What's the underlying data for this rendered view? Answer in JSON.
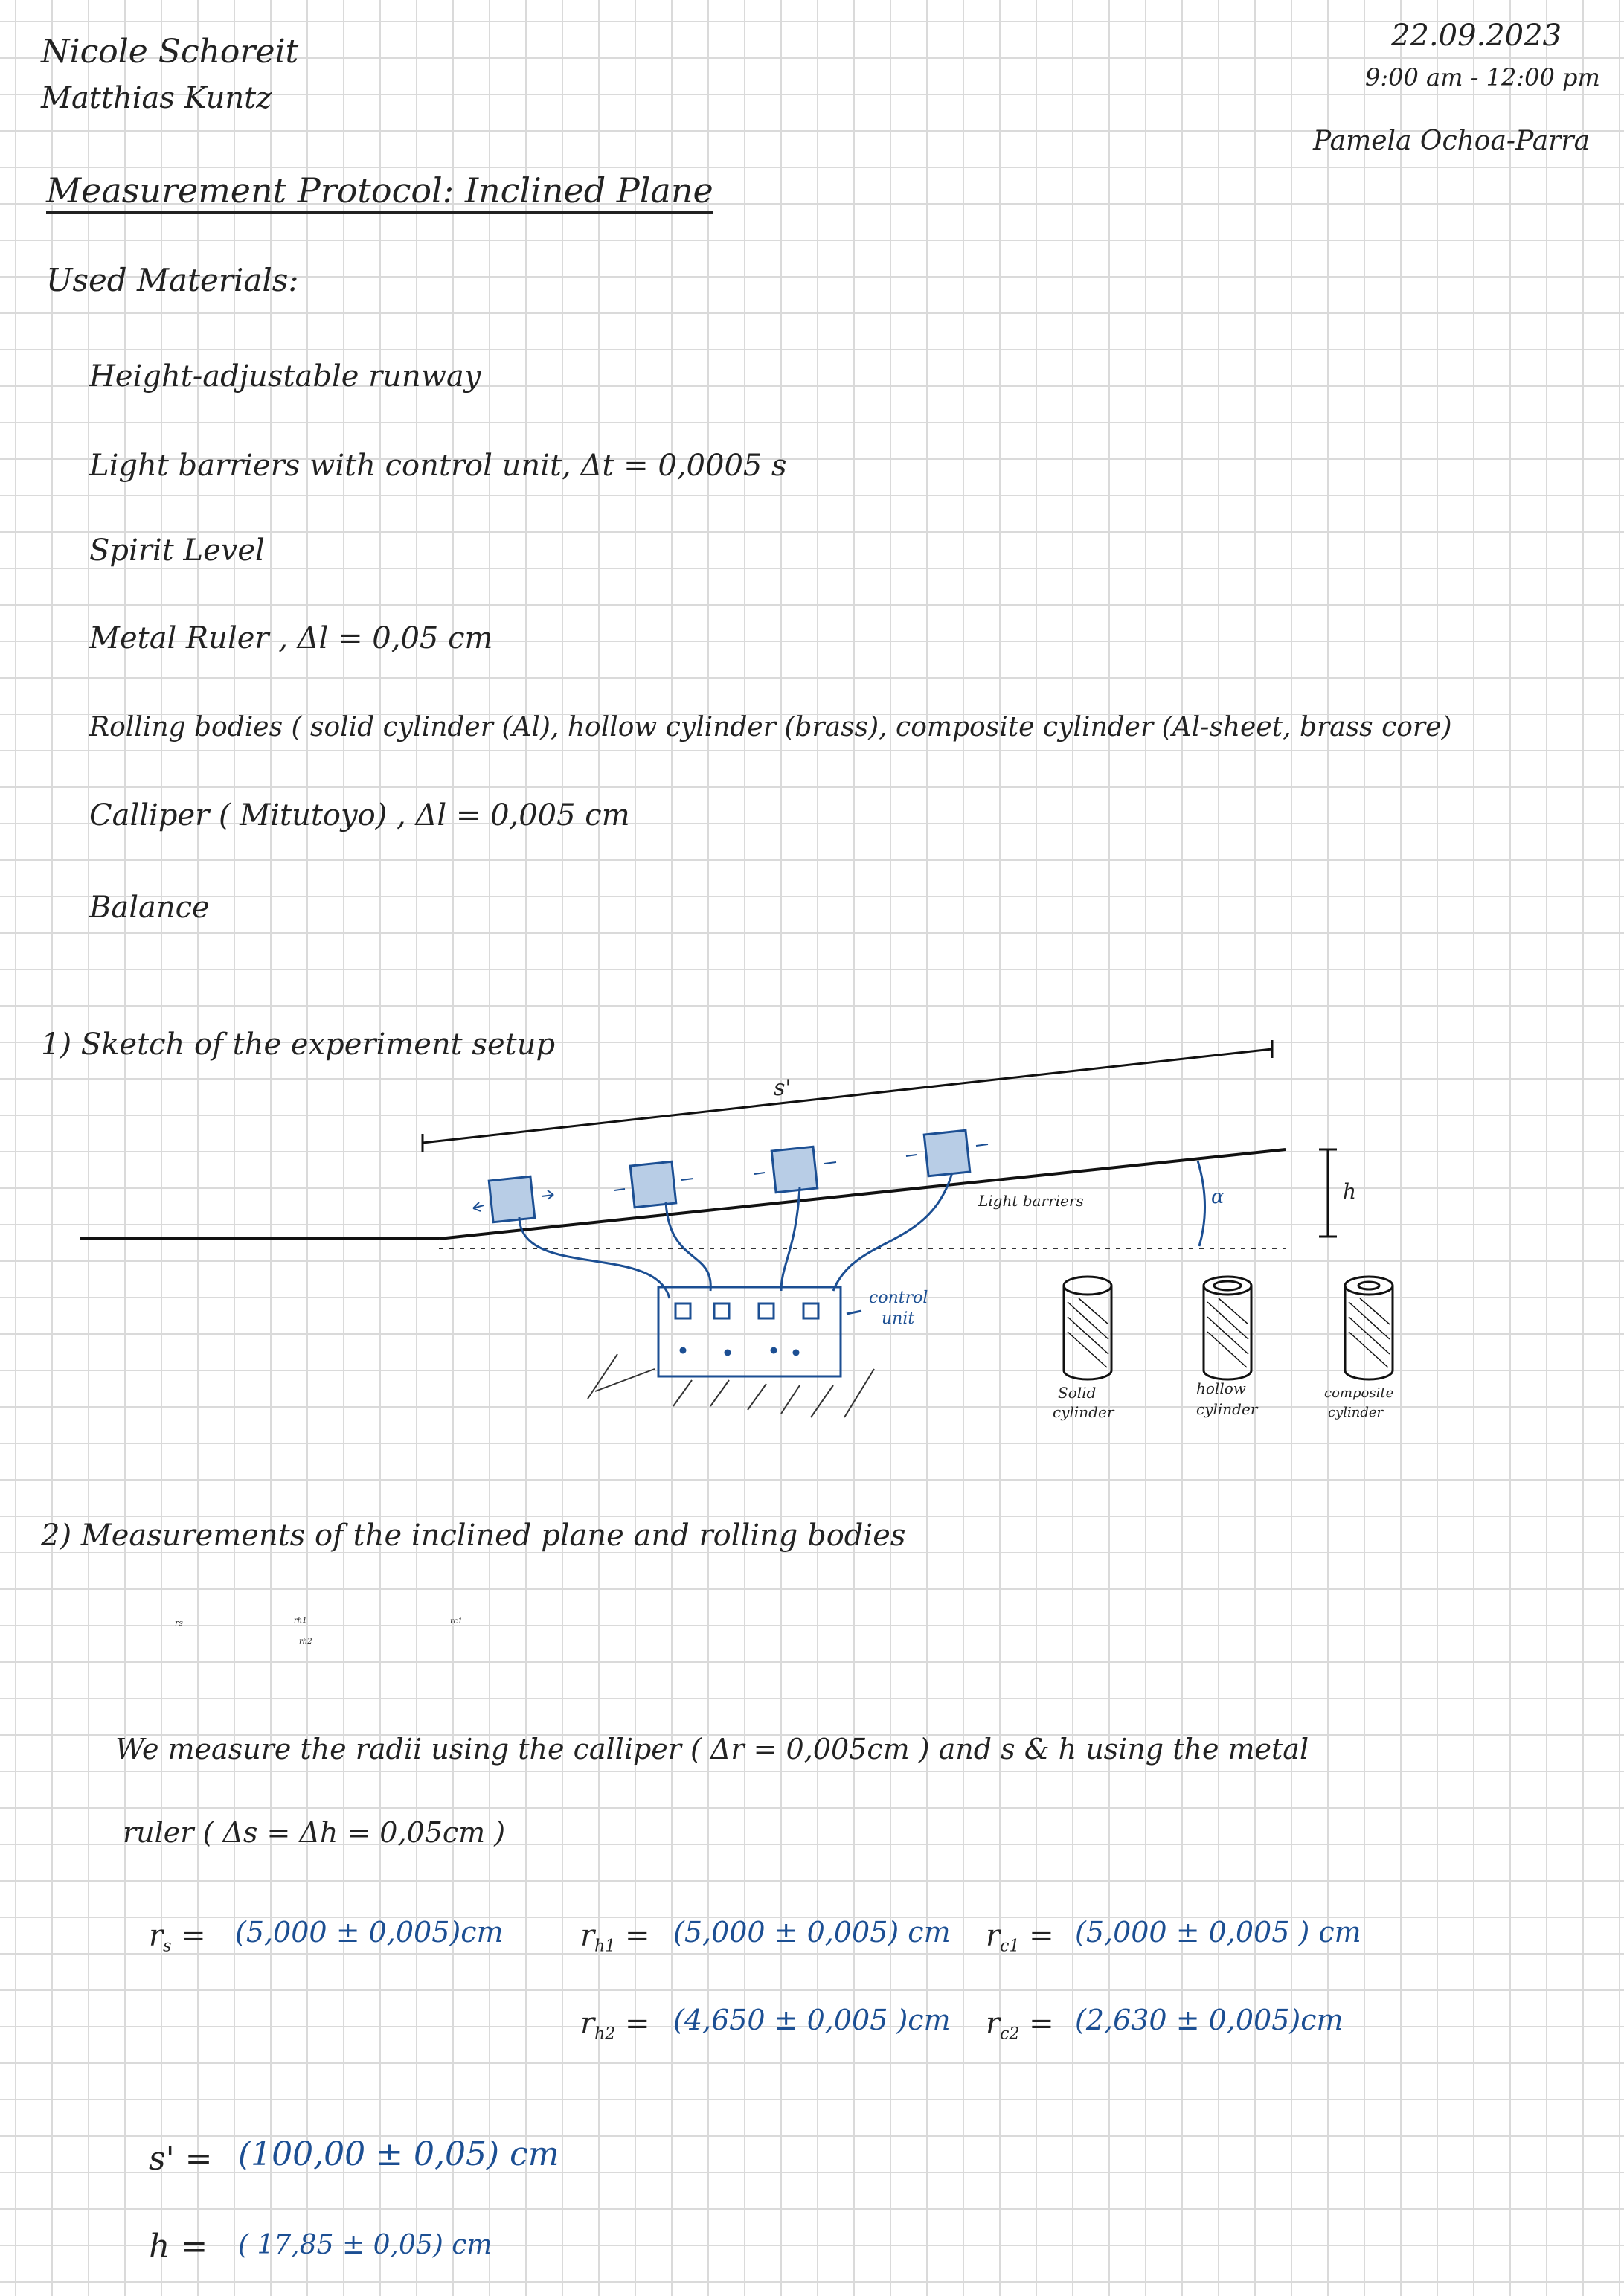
{
  "header": {
    "authors": [
      "Nicole Schoreit",
      "Matthias Kuntz"
    ],
    "date": "22.09.2023",
    "time": "9:00 am - 12:00 pm",
    "supervisor": "Pamela Ochoa-Parra"
  },
  "title": "Measurement Protocol: Inclined Plane",
  "materials_heading": "Used Materials:",
  "materials": [
    "Height-adjustable runway",
    "Light barriers with control unit, Δt = 0,0005 s",
    "Spirit Level",
    "Metal Ruler , Δl = 0,05 cm",
    "Rolling bodies ( solid cylinder (Al), hollow cylinder (brass), composite cylinder (Al-sheet, brass core)",
    "Calliper ( Mitutoyo) , Δl = 0,005 cm",
    "Balance"
  ],
  "section1": {
    "heading": "1) Sketch of the experiment setup",
    "label_s": "s'",
    "label_h": "h",
    "label_alpha": "α",
    "label_light_barriers": "Light barriers",
    "label_control_unit_1": "control",
    "label_control_unit_2": "unit",
    "cyl_solid_1": "Solid",
    "cyl_solid_2": "cylinder",
    "cyl_hollow_1": "hollow",
    "cyl_hollow_2": "cylinder",
    "cyl_comp_1": "composite",
    "cyl_comp_2": "cylinder"
  },
  "section2": {
    "heading": "2) Measurements of the inclined plane and rolling bodies",
    "circle_label_s": "rs",
    "circle_label_h1": "rh1",
    "circle_label_h2": "rh2",
    "circle_label_c1": "rc1",
    "text_line1": "We measure the radii using the calliper ( Δr = 0,005cm ) and s & h using the metal",
    "text_line2": "ruler ( Δs = Δh = 0,05cm )",
    "r_s": "(5,000 ± 0,005)cm",
    "r_h1": "(5,000 ± 0,005) cm",
    "r_h2": "(4,650 ± 0,005 )cm",
    "r_c1": "(5,000 ± 0,005 ) cm",
    "r_c2": "(2,630 ± 0,005)cm",
    "s_value": "(100,00 ± 0,05) cm",
    "h_value": "( 17,85 ± 0,05) cm"
  }
}
